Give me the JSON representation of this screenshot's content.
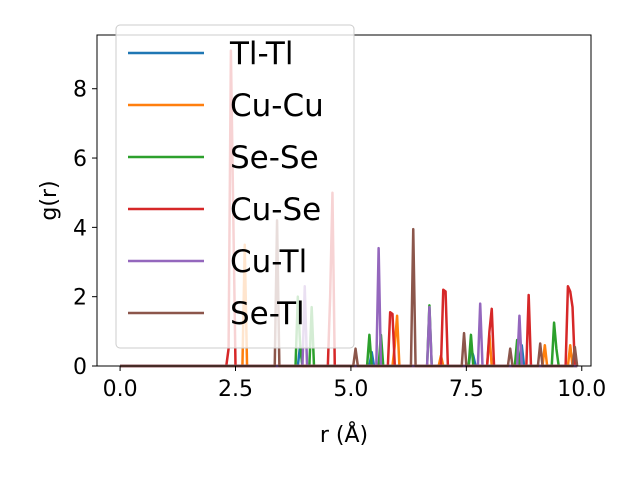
{
  "chart_data": {
    "type": "line",
    "title": "",
    "xlabel": "r (Å)",
    "ylabel": "g(r)",
    "xlim": [
      -0.5,
      10.2
    ],
    "ylim": [
      0,
      9.55
    ],
    "xticks": [
      0.0,
      2.5,
      5.0,
      7.5,
      10.0
    ],
    "xtick_labels": [
      "0.0",
      "2.5",
      "5.0",
      "7.5",
      "10.0"
    ],
    "yticks": [
      0,
      2,
      4,
      6,
      8
    ],
    "ytick_labels": [
      "0",
      "2",
      "4",
      "6",
      "8"
    ],
    "grid": false,
    "legend_position": "top-left",
    "series": [
      {
        "name": "Tl-Tl",
        "color": "#1f77b4",
        "points": [
          [
            0,
            0
          ],
          [
            3.85,
            0
          ],
          [
            3.9,
            0.6
          ],
          [
            3.95,
            0
          ],
          [
            5.4,
            0
          ],
          [
            5.45,
            0.4
          ],
          [
            5.5,
            0
          ],
          [
            7.55,
            0
          ],
          [
            7.6,
            0.5
          ],
          [
            7.65,
            0.3
          ],
          [
            7.7,
            0
          ],
          [
            8.65,
            0
          ],
          [
            8.7,
            0.6
          ],
          [
            8.75,
            0
          ],
          [
            9.9,
            0
          ]
        ]
      },
      {
        "name": "Cu-Cu",
        "color": "#ff7f0e",
        "points": [
          [
            0,
            0
          ],
          [
            2.65,
            0
          ],
          [
            2.7,
            3.5
          ],
          [
            2.75,
            0
          ],
          [
            5.9,
            0
          ],
          [
            5.95,
            0.6
          ],
          [
            6.0,
            1.45
          ],
          [
            6.05,
            0
          ],
          [
            6.9,
            0
          ],
          [
            6.95,
            0.3
          ],
          [
            7.0,
            0
          ],
          [
            7.95,
            0
          ],
          [
            8.0,
            0.9
          ],
          [
            8.05,
            0
          ],
          [
            9.15,
            0
          ],
          [
            9.2,
            0.6
          ],
          [
            9.25,
            0
          ],
          [
            9.7,
            0
          ],
          [
            9.75,
            0.6
          ],
          [
            9.8,
            0
          ],
          [
            9.9,
            0
          ]
        ]
      },
      {
        "name": "Se-Se",
        "color": "#2ca02c",
        "points": [
          [
            0,
            0
          ],
          [
            3.8,
            0
          ],
          [
            3.85,
            2.0
          ],
          [
            3.9,
            0.6
          ],
          [
            3.95,
            0
          ],
          [
            4.1,
            0
          ],
          [
            4.15,
            1.7
          ],
          [
            4.2,
            0
          ],
          [
            5.35,
            0
          ],
          [
            5.4,
            0.9
          ],
          [
            5.45,
            0
          ],
          [
            5.6,
            0
          ],
          [
            5.65,
            0.9
          ],
          [
            5.7,
            0
          ],
          [
            6.65,
            0
          ],
          [
            6.7,
            1.75
          ],
          [
            6.75,
            0
          ],
          [
            7.55,
            0
          ],
          [
            7.6,
            0.9
          ],
          [
            7.65,
            0
          ],
          [
            8.55,
            0
          ],
          [
            8.6,
            0.75
          ],
          [
            8.65,
            0
          ],
          [
            9.35,
            0
          ],
          [
            9.4,
            1.25
          ],
          [
            9.45,
            0.5
          ],
          [
            9.5,
            0
          ],
          [
            9.9,
            0
          ]
        ]
      },
      {
        "name": "Cu-Se",
        "color": "#d62728",
        "points": [
          [
            0,
            0
          ],
          [
            2.3,
            0
          ],
          [
            2.35,
            0.5
          ],
          [
            2.4,
            9.1
          ],
          [
            2.45,
            4.5
          ],
          [
            2.5,
            0
          ],
          [
            4.5,
            0
          ],
          [
            4.55,
            2.0
          ],
          [
            4.6,
            5.0
          ],
          [
            4.65,
            0
          ],
          [
            5.8,
            0
          ],
          [
            5.85,
            1.55
          ],
          [
            5.9,
            1.5
          ],
          [
            5.95,
            0
          ],
          [
            6.95,
            0
          ],
          [
            7.0,
            2.2
          ],
          [
            7.05,
            2.15
          ],
          [
            7.1,
            0
          ],
          [
            7.95,
            0
          ],
          [
            8.0,
            1.0
          ],
          [
            8.05,
            1.65
          ],
          [
            8.1,
            0
          ],
          [
            8.8,
            0
          ],
          [
            8.85,
            2.05
          ],
          [
            8.9,
            0
          ],
          [
            9.65,
            0
          ],
          [
            9.7,
            2.3
          ],
          [
            9.75,
            2.15
          ],
          [
            9.8,
            1.7
          ],
          [
            9.85,
            0
          ],
          [
            9.9,
            0
          ]
        ]
      },
      {
        "name": "Cu-Tl",
        "color": "#9467bd",
        "points": [
          [
            0,
            0
          ],
          [
            3.95,
            0
          ],
          [
            4.0,
            2.3
          ],
          [
            4.05,
            0
          ],
          [
            5.55,
            0
          ],
          [
            5.6,
            3.4
          ],
          [
            5.65,
            0
          ],
          [
            6.65,
            0
          ],
          [
            6.7,
            1.7
          ],
          [
            6.75,
            0
          ],
          [
            7.75,
            0
          ],
          [
            7.8,
            1.8
          ],
          [
            7.85,
            0
          ],
          [
            8.6,
            0
          ],
          [
            8.65,
            1.45
          ],
          [
            8.7,
            0
          ],
          [
            9.9,
            0
          ]
        ]
      },
      {
        "name": "Se-Tl",
        "color": "#8c564b",
        "points": [
          [
            0,
            0
          ],
          [
            3.35,
            0
          ],
          [
            3.4,
            4.2
          ],
          [
            3.45,
            0
          ],
          [
            5.05,
            0
          ],
          [
            5.1,
            0.5
          ],
          [
            5.15,
            0
          ],
          [
            6.3,
            0
          ],
          [
            6.35,
            3.95
          ],
          [
            6.4,
            0
          ],
          [
            7.4,
            0
          ],
          [
            7.45,
            0.95
          ],
          [
            7.5,
            0
          ],
          [
            8.4,
            0
          ],
          [
            8.45,
            0.5
          ],
          [
            8.5,
            0
          ],
          [
            9.05,
            0
          ],
          [
            9.1,
            0.65
          ],
          [
            9.15,
            0
          ],
          [
            9.8,
            0
          ],
          [
            9.85,
            0.55
          ],
          [
            9.9,
            0
          ]
        ]
      }
    ]
  }
}
